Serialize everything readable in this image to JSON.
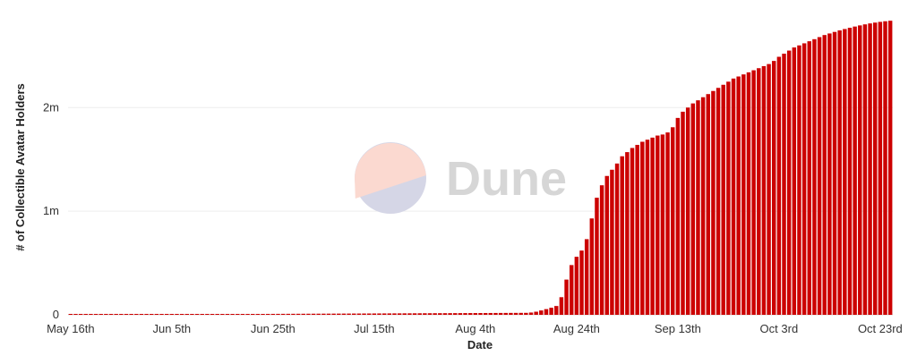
{
  "chart_data": {
    "type": "bar",
    "title": "",
    "xlabel": "Date",
    "ylabel": "# of Collectible Avatar Holders",
    "x_start": "2022-05-16",
    "x_end": "2022-10-25",
    "x_ticks": [
      {
        "date": "2022-05-16",
        "label": "May 16th"
      },
      {
        "date": "2022-06-05",
        "label": "Jun 5th"
      },
      {
        "date": "2022-06-25",
        "label": "Jun 25th"
      },
      {
        "date": "2022-07-15",
        "label": "Jul 15th"
      },
      {
        "date": "2022-08-04",
        "label": "Aug 4th"
      },
      {
        "date": "2022-08-24",
        "label": "Aug 24th"
      },
      {
        "date": "2022-09-13",
        "label": "Sep 13th"
      },
      {
        "date": "2022-10-03",
        "label": "Oct 3rd"
      },
      {
        "date": "2022-10-23",
        "label": "Oct 23rd"
      }
    ],
    "y_ticks": [
      {
        "value": 0,
        "label": "0"
      },
      {
        "value": 1000000,
        "label": "1m"
      },
      {
        "value": 2000000,
        "label": "2m"
      }
    ],
    "ylim": [
      0,
      2900000
    ],
    "grid": true,
    "legend": "none",
    "bar_color": "#cc0000",
    "series": [
      {
        "points": [
          [
            "2022-05-16",
            1000
          ],
          [
            "2022-05-17",
            1200
          ],
          [
            "2022-05-18",
            1400
          ],
          [
            "2022-05-19",
            1600
          ],
          [
            "2022-05-20",
            1800
          ],
          [
            "2022-05-21",
            2000
          ],
          [
            "2022-05-22",
            2200
          ],
          [
            "2022-05-23",
            2400
          ],
          [
            "2022-05-24",
            2600
          ],
          [
            "2022-05-25",
            2800
          ],
          [
            "2022-05-26",
            3000
          ],
          [
            "2022-05-27",
            3200
          ],
          [
            "2022-05-28",
            3400
          ],
          [
            "2022-05-29",
            3600
          ],
          [
            "2022-05-30",
            3800
          ],
          [
            "2022-05-31",
            4000
          ],
          [
            "2022-06-01",
            4200
          ],
          [
            "2022-06-02",
            4400
          ],
          [
            "2022-06-03",
            4600
          ],
          [
            "2022-06-04",
            4800
          ],
          [
            "2022-06-05",
            5000
          ],
          [
            "2022-06-06",
            5200
          ],
          [
            "2022-06-07",
            5400
          ],
          [
            "2022-06-08",
            5600
          ],
          [
            "2022-06-09",
            5800
          ],
          [
            "2022-06-10",
            6000
          ],
          [
            "2022-06-11",
            6200
          ],
          [
            "2022-06-12",
            6400
          ],
          [
            "2022-06-13",
            6600
          ],
          [
            "2022-06-14",
            6800
          ],
          [
            "2022-06-15",
            7000
          ],
          [
            "2022-06-16",
            7200
          ],
          [
            "2022-06-17",
            7400
          ],
          [
            "2022-06-18",
            7600
          ],
          [
            "2022-06-19",
            7800
          ],
          [
            "2022-06-20",
            8000
          ],
          [
            "2022-06-21",
            8200
          ],
          [
            "2022-06-22",
            8400
          ],
          [
            "2022-06-23",
            8600
          ],
          [
            "2022-06-24",
            8800
          ],
          [
            "2022-06-25",
            9000
          ],
          [
            "2022-06-26",
            9200
          ],
          [
            "2022-06-27",
            9400
          ],
          [
            "2022-06-28",
            9600
          ],
          [
            "2022-06-29",
            9800
          ],
          [
            "2022-06-30",
            10000
          ],
          [
            "2022-07-01",
            10200
          ],
          [
            "2022-07-02",
            10400
          ],
          [
            "2022-07-03",
            10600
          ],
          [
            "2022-07-04",
            10800
          ],
          [
            "2022-07-05",
            11000
          ],
          [
            "2022-07-06",
            11200
          ],
          [
            "2022-07-07",
            11400
          ],
          [
            "2022-07-08",
            11600
          ],
          [
            "2022-07-09",
            11800
          ],
          [
            "2022-07-10",
            12000
          ],
          [
            "2022-07-11",
            12200
          ],
          [
            "2022-07-12",
            12400
          ],
          [
            "2022-07-13",
            12600
          ],
          [
            "2022-07-14",
            12800
          ],
          [
            "2022-07-15",
            13000
          ],
          [
            "2022-07-16",
            13200
          ],
          [
            "2022-07-17",
            13400
          ],
          [
            "2022-07-18",
            13600
          ],
          [
            "2022-07-19",
            13800
          ],
          [
            "2022-07-20",
            14000
          ],
          [
            "2022-07-21",
            14200
          ],
          [
            "2022-07-22",
            14400
          ],
          [
            "2022-07-23",
            14600
          ],
          [
            "2022-07-24",
            14800
          ],
          [
            "2022-07-25",
            15000
          ],
          [
            "2022-07-26",
            15200
          ],
          [
            "2022-07-27",
            15400
          ],
          [
            "2022-07-28",
            15600
          ],
          [
            "2022-07-29",
            15800
          ],
          [
            "2022-07-30",
            16000
          ],
          [
            "2022-07-31",
            16200
          ],
          [
            "2022-08-01",
            16400
          ],
          [
            "2022-08-02",
            16600
          ],
          [
            "2022-08-03",
            16800
          ],
          [
            "2022-08-04",
            17000
          ],
          [
            "2022-08-05",
            17200
          ],
          [
            "2022-08-06",
            17400
          ],
          [
            "2022-08-07",
            17600
          ],
          [
            "2022-08-08",
            17800
          ],
          [
            "2022-08-09",
            18000
          ],
          [
            "2022-08-10",
            18200
          ],
          [
            "2022-08-11",
            18400
          ],
          [
            "2022-08-12",
            18600
          ],
          [
            "2022-08-13",
            18800
          ],
          [
            "2022-08-14",
            19000
          ],
          [
            "2022-08-15",
            22000
          ],
          [
            "2022-08-16",
            30000
          ],
          [
            "2022-08-17",
            42000
          ],
          [
            "2022-08-18",
            55000
          ],
          [
            "2022-08-19",
            68000
          ],
          [
            "2022-08-20",
            85000
          ],
          [
            "2022-08-21",
            170000
          ],
          [
            "2022-08-22",
            340000
          ],
          [
            "2022-08-23",
            480000
          ],
          [
            "2022-08-24",
            560000
          ],
          [
            "2022-08-25",
            620000
          ],
          [
            "2022-08-26",
            730000
          ],
          [
            "2022-08-27",
            930000
          ],
          [
            "2022-08-28",
            1130000
          ],
          [
            "2022-08-29",
            1250000
          ],
          [
            "2022-08-30",
            1340000
          ],
          [
            "2022-08-31",
            1400000
          ],
          [
            "2022-09-01",
            1460000
          ],
          [
            "2022-09-02",
            1530000
          ],
          [
            "2022-09-03",
            1570000
          ],
          [
            "2022-09-04",
            1610000
          ],
          [
            "2022-09-05",
            1640000
          ],
          [
            "2022-09-06",
            1670000
          ],
          [
            "2022-09-07",
            1690000
          ],
          [
            "2022-09-08",
            1710000
          ],
          [
            "2022-09-09",
            1730000
          ],
          [
            "2022-09-10",
            1740000
          ],
          [
            "2022-09-11",
            1760000
          ],
          [
            "2022-09-12",
            1810000
          ],
          [
            "2022-09-13",
            1900000
          ],
          [
            "2022-09-14",
            1960000
          ],
          [
            "2022-09-15",
            2000000
          ],
          [
            "2022-09-16",
            2040000
          ],
          [
            "2022-09-17",
            2070000
          ],
          [
            "2022-09-18",
            2100000
          ],
          [
            "2022-09-19",
            2130000
          ],
          [
            "2022-09-20",
            2160000
          ],
          [
            "2022-09-21",
            2190000
          ],
          [
            "2022-09-22",
            2220000
          ],
          [
            "2022-09-23",
            2250000
          ],
          [
            "2022-09-24",
            2280000
          ],
          [
            "2022-09-25",
            2300000
          ],
          [
            "2022-09-26",
            2320000
          ],
          [
            "2022-09-27",
            2340000
          ],
          [
            "2022-09-28",
            2360000
          ],
          [
            "2022-09-29",
            2380000
          ],
          [
            "2022-09-30",
            2400000
          ],
          [
            "2022-10-01",
            2420000
          ],
          [
            "2022-10-02",
            2450000
          ],
          [
            "2022-10-03",
            2490000
          ],
          [
            "2022-10-04",
            2520000
          ],
          [
            "2022-10-05",
            2550000
          ],
          [
            "2022-10-06",
            2580000
          ],
          [
            "2022-10-07",
            2600000
          ],
          [
            "2022-10-08",
            2620000
          ],
          [
            "2022-10-09",
            2640000
          ],
          [
            "2022-10-10",
            2660000
          ],
          [
            "2022-10-11",
            2680000
          ],
          [
            "2022-10-12",
            2700000
          ],
          [
            "2022-10-13",
            2715000
          ],
          [
            "2022-10-14",
            2730000
          ],
          [
            "2022-10-15",
            2745000
          ],
          [
            "2022-10-16",
            2758000
          ],
          [
            "2022-10-17",
            2770000
          ],
          [
            "2022-10-18",
            2782000
          ],
          [
            "2022-10-19",
            2793000
          ],
          [
            "2022-10-20",
            2803000
          ],
          [
            "2022-10-21",
            2812000
          ],
          [
            "2022-10-22",
            2820000
          ],
          [
            "2022-10-23",
            2827000
          ],
          [
            "2022-10-24",
            2833000
          ],
          [
            "2022-10-25",
            2838000
          ]
        ]
      }
    ]
  },
  "watermark": {
    "text": "Dune",
    "logo_top_color": "#fbd9d0",
    "logo_bottom_color": "#d5d6e6"
  }
}
